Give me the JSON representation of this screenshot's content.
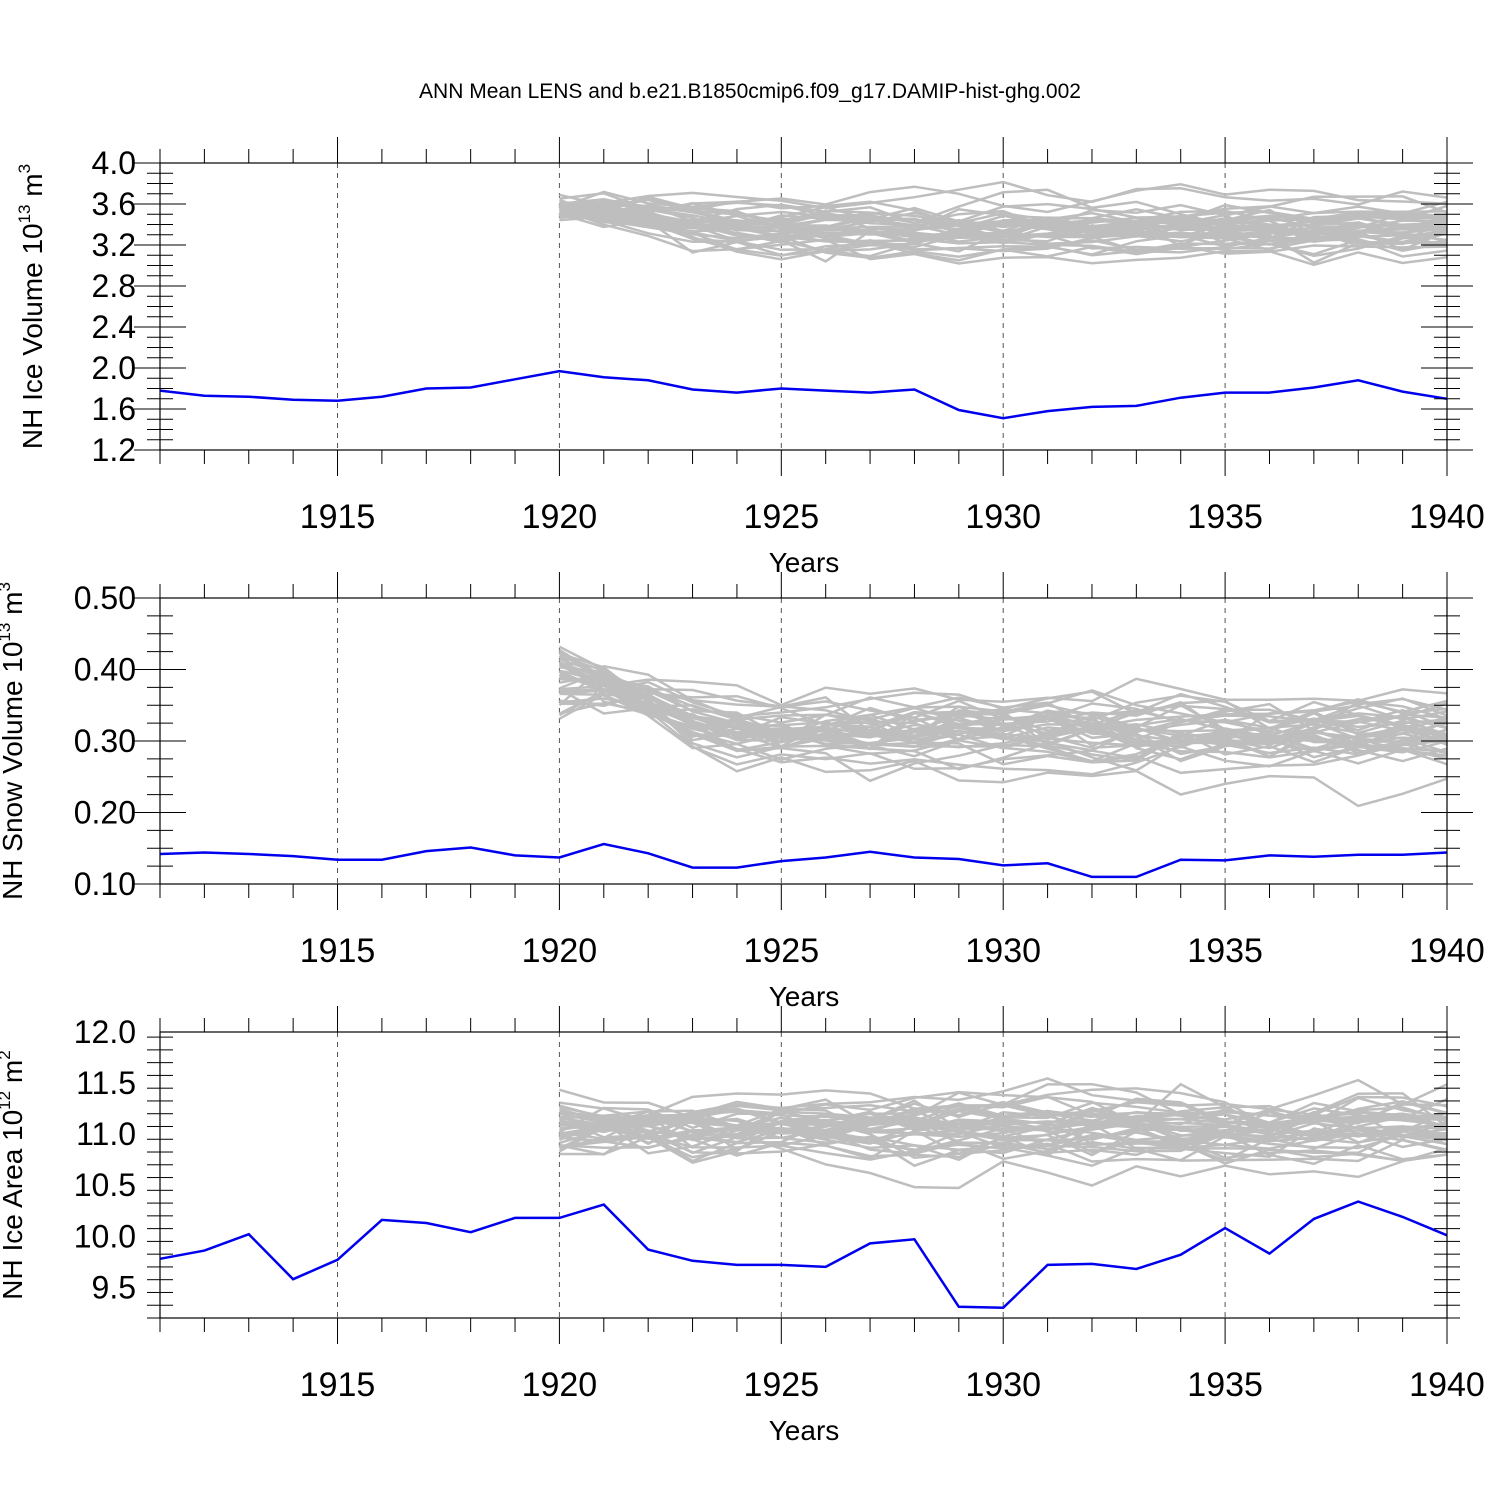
{
  "title": "ANN Mean LENS and b.e21.B1850cmip6.f09_g17.DAMIP-hist-ghg.002",
  "chart_data": [
    {
      "type": "line",
      "ylabel": {
        "prefix": "NH Ice Volume 10",
        "exp": "13",
        "unit": " m",
        "unit_exp": "3"
      },
      "xlabel": "Years",
      "xlim": [
        1911,
        1940
      ],
      "ylim": [
        1.2,
        4.0
      ],
      "yticks": [
        "4.0",
        "3.6",
        "3.2",
        "2.8",
        "2.4",
        "2.0",
        "1.6",
        "1.2"
      ],
      "ytick_values": [
        4.0,
        3.6,
        3.2,
        2.8,
        2.4,
        2.0,
        1.6,
        1.2
      ],
      "xticks": [
        "1915",
        "1920",
        "1925",
        "1930",
        "1935",
        "1940"
      ],
      "xtick_values": [
        1915,
        1920,
        1925,
        1930,
        1935,
        1940
      ],
      "grid_x": [
        1915,
        1920,
        1925,
        1930,
        1935
      ],
      "ensemble": {
        "color": "#bebebe",
        "count": 40,
        "x_start": 1920,
        "x_end": 1940,
        "mean": 3.35,
        "spread": 0.18,
        "start_mean": 3.55,
        "start_spread": 0.06
      },
      "series": [
        {
          "color": "#0000ee",
          "x": [
            1911,
            1912,
            1913,
            1914,
            1915,
            1916,
            1917,
            1918,
            1919,
            1920,
            1921,
            1922,
            1923,
            1924,
            1925,
            1926,
            1927,
            1928,
            1929,
            1930,
            1931,
            1932,
            1933,
            1934,
            1935,
            1936,
            1937,
            1938,
            1939,
            1940
          ],
          "values": [
            1.78,
            1.73,
            1.72,
            1.69,
            1.68,
            1.72,
            1.8,
            1.81,
            1.89,
            1.97,
            1.91,
            1.88,
            1.79,
            1.76,
            1.8,
            1.78,
            1.76,
            1.79,
            1.59,
            1.51,
            1.58,
            1.62,
            1.63,
            1.71,
            1.76,
            1.76,
            1.81,
            1.88,
            1.77,
            1.7
          ]
        }
      ]
    },
    {
      "type": "line",
      "ylabel": {
        "prefix": "NH Snow Volume 10",
        "exp": "13",
        "unit": " m",
        "unit_exp": "3"
      },
      "xlabel": "Years",
      "xlim": [
        1911,
        1940
      ],
      "ylim": [
        0.1,
        0.5
      ],
      "yticks": [
        "0.50",
        "0.40",
        "0.30",
        "0.20",
        "0.10"
      ],
      "ytick_values": [
        0.5,
        0.4,
        0.3,
        0.2,
        0.1
      ],
      "xticks": [
        "1915",
        "1920",
        "1925",
        "1930",
        "1935",
        "1940"
      ],
      "xtick_values": [
        1915,
        1920,
        1925,
        1930,
        1935,
        1940
      ],
      "grid_x": [
        1915,
        1920,
        1925,
        1930,
        1935
      ],
      "ensemble": {
        "color": "#bebebe",
        "count": 40,
        "x_start": 1920,
        "x_end": 1940,
        "mean": 0.31,
        "spread": 0.035,
        "start_mean": 0.39,
        "start_spread": 0.03
      },
      "series": [
        {
          "color": "#0000ee",
          "x": [
            1911,
            1912,
            1913,
            1914,
            1915,
            1916,
            1917,
            1918,
            1919,
            1920,
            1921,
            1922,
            1923,
            1924,
            1925,
            1926,
            1927,
            1928,
            1929,
            1930,
            1931,
            1932,
            1933,
            1934,
            1935,
            1936,
            1937,
            1938,
            1939,
            1940
          ],
          "values": [
            0.142,
            0.144,
            0.142,
            0.139,
            0.134,
            0.134,
            0.146,
            0.151,
            0.14,
            0.137,
            0.156,
            0.143,
            0.123,
            0.123,
            0.132,
            0.137,
            0.145,
            0.137,
            0.135,
            0.126,
            0.129,
            0.11,
            0.11,
            0.134,
            0.133,
            0.14,
            0.138,
            0.141,
            0.141,
            0.144
          ]
        }
      ]
    },
    {
      "type": "line",
      "ylabel": {
        "prefix": "NH Ice Area 10",
        "exp": "12",
        "unit": " m",
        "unit_exp": "2"
      },
      "xlabel": "Years",
      "xlim": [
        1911,
        1940
      ],
      "ylim": [
        9.2,
        12.0
      ],
      "yticks": [
        "12.0",
        "11.5",
        "11.0",
        "10.5",
        "10.0",
        "9.5"
      ],
      "ytick_values": [
        12.0,
        11.5,
        11.0,
        10.5,
        10.0,
        9.5
      ],
      "xticks": [
        "1915",
        "1920",
        "1925",
        "1930",
        "1935",
        "1940"
      ],
      "xtick_values": [
        1915,
        1920,
        1925,
        1930,
        1935,
        1940
      ],
      "grid_x": [
        1915,
        1920,
        1925,
        1930,
        1935
      ],
      "ensemble": {
        "color": "#bebebe",
        "count": 40,
        "x_start": 1920,
        "x_end": 1940,
        "mean": 11.08,
        "spread": 0.24,
        "start_mean": 11.1,
        "start_spread": 0.18
      },
      "series": [
        {
          "color": "#0000ee",
          "x": [
            1911,
            1912,
            1913,
            1914,
            1915,
            1916,
            1917,
            1918,
            1919,
            1920,
            1921,
            1922,
            1923,
            1924,
            1925,
            1926,
            1927,
            1928,
            1929,
            1930,
            1931,
            1932,
            1933,
            1934,
            1935,
            1936,
            1937,
            1938,
            1939,
            1940
          ],
          "values": [
            9.78,
            9.86,
            10.02,
            9.58,
            9.77,
            10.16,
            10.13,
            10.04,
            10.18,
            10.18,
            10.31,
            9.87,
            9.76,
            9.72,
            9.72,
            9.7,
            9.93,
            9.97,
            9.31,
            9.3,
            9.72,
            9.73,
            9.68,
            9.82,
            10.08,
            9.83,
            10.17,
            10.34,
            10.19,
            10.01
          ]
        }
      ]
    }
  ]
}
